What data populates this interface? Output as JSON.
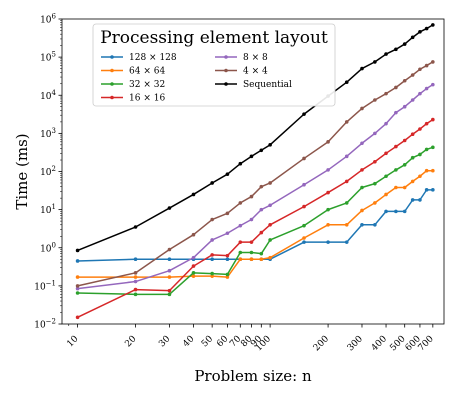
{
  "chart_data": {
    "type": "line",
    "title": "",
    "xlabel": "Problem size: n",
    "ylabel": "Time (ms)",
    "xscale": "log",
    "yscale": "log",
    "xlim": [
      8.3,
      800
    ],
    "ylim": [
      0.01,
      1000000
    ],
    "x_ticks": [
      10,
      20,
      30,
      40,
      50,
      60,
      70,
      80,
      90,
      100,
      200,
      300,
      400,
      500,
      600,
      700
    ],
    "x_tick_labels": [
      "10",
      "20",
      "30",
      "40",
      "50",
      "60",
      "70",
      "80",
      "90",
      "100",
      "200",
      "300",
      "400",
      "500",
      "600",
      "700"
    ],
    "y_ticks": [
      0.01,
      0.1,
      1,
      10,
      100,
      1000,
      10000,
      100000,
      1000000
    ],
    "y_tick_exponents": [
      "−2",
      "−1",
      "0",
      "1",
      "2",
      "3",
      "4",
      "5",
      "6"
    ],
    "y_tick_base": "10",
    "legend_title": "Processing element layout",
    "legend_position": "top-left",
    "grid": false,
    "series": [
      {
        "name": "128 × 128",
        "color": "#1f77b4",
        "x": [
          10,
          20,
          30,
          40,
          50,
          60,
          70,
          80,
          90,
          100,
          150,
          200,
          250,
          300,
          350,
          400,
          450,
          500,
          550,
          600,
          650,
          700
        ],
        "y": [
          0.45,
          0.5,
          0.5,
          0.5,
          0.5,
          0.5,
          0.5,
          0.5,
          0.5,
          0.5,
          1.4,
          1.4,
          1.4,
          4,
          4,
          9,
          9,
          9,
          18,
          18,
          33,
          33
        ]
      },
      {
        "name": "64 × 64",
        "color": "#ff7f0e",
        "x": [
          10,
          20,
          30,
          40,
          50,
          60,
          70,
          80,
          90,
          100,
          150,
          200,
          250,
          300,
          350,
          400,
          450,
          500,
          550,
          600,
          650,
          700
        ],
        "y": [
          0.17,
          0.17,
          0.17,
          0.18,
          0.18,
          0.17,
          0.5,
          0.5,
          0.5,
          0.55,
          1.8,
          4,
          4,
          9.5,
          15,
          25,
          38,
          38,
          55,
          75,
          105,
          105
        ]
      },
      {
        "name": "32 × 32",
        "color": "#2ca02c",
        "x": [
          10,
          20,
          30,
          40,
          50,
          60,
          70,
          80,
          90,
          100,
          150,
          200,
          250,
          300,
          350,
          400,
          450,
          500,
          550,
          600,
          650,
          700
        ],
        "y": [
          0.065,
          0.06,
          0.06,
          0.22,
          0.21,
          0.2,
          0.75,
          0.75,
          0.7,
          1.6,
          3.8,
          10,
          15,
          38,
          48,
          75,
          110,
          150,
          230,
          280,
          380,
          430
        ]
      },
      {
        "name": "16 × 16",
        "color": "#d62728",
        "x": [
          10,
          20,
          30,
          40,
          50,
          60,
          70,
          80,
          90,
          100,
          150,
          200,
          250,
          300,
          350,
          400,
          450,
          500,
          550,
          600,
          650,
          700
        ],
        "y": [
          0.015,
          0.08,
          0.075,
          0.33,
          0.65,
          0.62,
          1.4,
          1.4,
          2.5,
          4,
          12,
          28,
          55,
          110,
          180,
          300,
          450,
          650,
          950,
          1300,
          1800,
          2300
        ]
      },
      {
        "name": "8 × 8",
        "color": "#9467bd",
        "x": [
          10,
          20,
          30,
          40,
          50,
          60,
          70,
          80,
          90,
          100,
          150,
          200,
          250,
          300,
          350,
          400,
          450,
          500,
          550,
          600,
          650,
          700
        ],
        "y": [
          0.085,
          0.13,
          0.25,
          0.55,
          1.6,
          2.4,
          3.8,
          5.5,
          10,
          13,
          45,
          110,
          250,
          550,
          1000,
          1800,
          3500,
          5000,
          7500,
          11000,
          15000,
          19000
        ]
      },
      {
        "name": "4 × 4",
        "color": "#8c564b",
        "x": [
          10,
          20,
          30,
          40,
          50,
          60,
          70,
          80,
          90,
          100,
          150,
          200,
          250,
          300,
          350,
          400,
          450,
          500,
          550,
          600,
          650,
          700
        ],
        "y": [
          0.1,
          0.22,
          0.9,
          2.2,
          5.5,
          8,
          15,
          22,
          40,
          50,
          220,
          600,
          2000,
          4500,
          7500,
          11000,
          16000,
          24000,
          34000,
          48000,
          60000,
          75000
        ]
      },
      {
        "name": "Sequential",
        "color": "#000000",
        "x": [
          10,
          20,
          30,
          40,
          50,
          60,
          70,
          80,
          90,
          100,
          150,
          200,
          250,
          300,
          350,
          400,
          450,
          500,
          550,
          600,
          650,
          700
        ],
        "y": [
          0.85,
          3.5,
          11,
          25,
          50,
          85,
          160,
          250,
          360,
          500,
          3200,
          9500,
          22000,
          50000,
          75000,
          120000,
          160000,
          220000,
          330000,
          460000,
          560000,
          700000
        ]
      }
    ]
  }
}
